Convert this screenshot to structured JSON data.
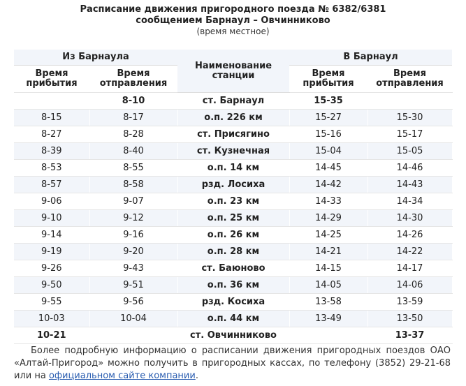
{
  "header": {
    "title_line1": "Расписание движения пригородного поезда № 6382/6381",
    "title_line2": "сообщением Барнаул – Овчинниково",
    "subtitle": "(время местное)"
  },
  "table": {
    "group_from": "Из Барнаула",
    "group_to": "В Барнаул",
    "col_station": "Наименование станции",
    "col_arrival": "Время прибытия",
    "col_departure": "Время отправления",
    "rows": [
      {
        "from_arr": "",
        "from_dep": "8-10",
        "station": "ст. Барнаул",
        "to_arr": "15-35",
        "to_dep": ""
      },
      {
        "from_arr": "8-15",
        "from_dep": "8-17",
        "station": "о.п. 226 км",
        "to_arr": "15-27",
        "to_dep": "15-30"
      },
      {
        "from_arr": "8-27",
        "from_dep": "8-28",
        "station": "ст. Присягино",
        "to_arr": "15-16",
        "to_dep": "15-17"
      },
      {
        "from_arr": "8-39",
        "from_dep": "8-40",
        "station": "ст. Кузнечная",
        "to_arr": "15-04",
        "to_dep": "15-05"
      },
      {
        "from_arr": "8-53",
        "from_dep": "8-55",
        "station": "о.п. 14 км",
        "to_arr": "14-45",
        "to_dep": "14-46"
      },
      {
        "from_arr": "8-57",
        "from_dep": "8-58",
        "station": "рзд. Лосиха",
        "to_arr": "14-42",
        "to_dep": "14-43"
      },
      {
        "from_arr": "9-06",
        "from_dep": "9-07",
        "station": "о.п. 23 км",
        "to_arr": "14-33",
        "to_dep": "14-34"
      },
      {
        "from_arr": "9-10",
        "from_dep": "9-12",
        "station": "о.п. 25 км",
        "to_arr": "14-29",
        "to_dep": "14-30"
      },
      {
        "from_arr": "9-14",
        "from_dep": "9-16",
        "station": "о.п. 26 км",
        "to_arr": "14-25",
        "to_dep": "14-26"
      },
      {
        "from_arr": "9-19",
        "from_dep": "9-20",
        "station": "о.п. 28 км",
        "to_arr": "14-21",
        "to_dep": "14-22"
      },
      {
        "from_arr": "9-26",
        "from_dep": "9-43",
        "station": "ст. Баюново",
        "to_arr": "14-15",
        "to_dep": "14-17"
      },
      {
        "from_arr": "9-50",
        "from_dep": "9-51",
        "station": "о.п. 36 км",
        "to_arr": "14-05",
        "to_dep": "14-06"
      },
      {
        "from_arr": "9-55",
        "from_dep": "9-56",
        "station": "рзд. Косиха",
        "to_arr": "13-58",
        "to_dep": "13-59"
      },
      {
        "from_arr": "10-03",
        "from_dep": "10-04",
        "station": "о.п. 44 км",
        "to_arr": "13-49",
        "to_dep": "13-50"
      },
      {
        "from_arr": "10-21",
        "from_dep": "",
        "station": "ст. Овчинниково",
        "to_arr": "",
        "to_dep": "13-37"
      }
    ]
  },
  "footer": {
    "text": "Более подробную информацию о расписании движения пригородных поездов ОАО «Алтай-Пригород» можно получить в пригородных кассах, по телефону (3852) 29-21-68 или на ",
    "link_text": "официальном сайте компании",
    "end": "."
  }
}
